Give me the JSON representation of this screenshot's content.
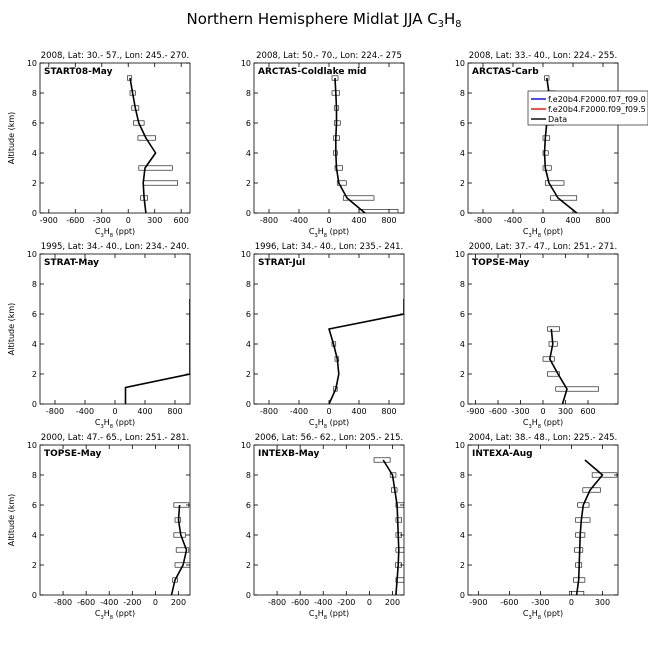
{
  "figure": {
    "title": "Northern Hemisphere Midlat JJA",
    "title_formula": {
      "base": "C",
      "sub1": "3",
      "mid": "H",
      "sub2": "8"
    }
  },
  "chart_data": [
    {
      "type": "line",
      "header": "2008, Lat:  30.- 57., Lon: 245.- 270.",
      "label": "START08-May",
      "xlim": [
        -1000,
        700
      ],
      "xticks": [
        -900,
        -600,
        -300,
        0,
        300,
        600
      ],
      "ylim": [
        0,
        10
      ],
      "yticks": [
        0,
        2,
        4,
        6,
        8,
        10
      ],
      "ylabel": "Altitude (km)",
      "xlabel": "",
      "legend": null,
      "model_line": [
        [
          200,
          0
        ],
        [
          180,
          1
        ],
        [
          170,
          2
        ],
        [
          190,
          3
        ],
        [
          310,
          4
        ],
        [
          200,
          5
        ],
        [
          120,
          6
        ],
        [
          80,
          7
        ],
        [
          50,
          8
        ],
        [
          20,
          9
        ]
      ],
      "obs_boxes": [
        {
          "y": 1,
          "x0": 140,
          "x1": 220
        },
        {
          "y": 2,
          "x0": 170,
          "x1": 560
        },
        {
          "y": 3,
          "x0": 120,
          "x1": 500
        },
        {
          "y": 5,
          "x0": 110,
          "x1": 310
        },
        {
          "y": 6,
          "x0": 60,
          "x1": 180
        },
        {
          "y": 7,
          "x0": 40,
          "x1": 120
        },
        {
          "y": 8,
          "x0": 20,
          "x1": 80
        },
        {
          "y": 9,
          "x0": -10,
          "x1": 40
        }
      ]
    },
    {
      "type": "line",
      "header": "2008, Lat:  50.- 70., Lon: 224.- 275",
      "label": "ARCTAS-Coldlake mid",
      "xlim": [
        -1000,
        1000
      ],
      "xticks": [
        -800,
        -400,
        0,
        400,
        800
      ],
      "ylim": [
        0,
        10
      ],
      "yticks": [
        0,
        2,
        4,
        6,
        8,
        10
      ],
      "ylabel": "",
      "xlabel": "",
      "legend": null,
      "model_line": [
        [
          480,
          0
        ],
        [
          240,
          1
        ],
        [
          130,
          2
        ],
        [
          100,
          3
        ],
        [
          90,
          4
        ],
        [
          90,
          5
        ],
        [
          100,
          6
        ],
        [
          100,
          7
        ],
        [
          90,
          8
        ],
        [
          80,
          9
        ]
      ],
      "obs_boxes": [
        {
          "y": 0.1,
          "x0": 400,
          "x1": 920
        },
        {
          "y": 1,
          "x0": 190,
          "x1": 600
        },
        {
          "y": 2,
          "x0": 110,
          "x1": 230
        },
        {
          "y": 3,
          "x0": 80,
          "x1": 180
        },
        {
          "y": 4,
          "x0": 60,
          "x1": 110
        },
        {
          "y": 5,
          "x0": 60,
          "x1": 140
        },
        {
          "y": 6,
          "x0": 70,
          "x1": 150
        },
        {
          "y": 7,
          "x0": 70,
          "x1": 130
        },
        {
          "y": 8,
          "x0": 40,
          "x1": 140
        },
        {
          "y": 9,
          "x0": 40,
          "x1": 120
        }
      ]
    },
    {
      "type": "line",
      "header": "2008, Lat:  33.- 40., Lon: 224.- 255.",
      "label": "ARCTAS-Carb",
      "xlim": [
        -1000,
        1000
      ],
      "xticks": [
        -800,
        -400,
        0,
        400,
        800
      ],
      "ylim": [
        0,
        10
      ],
      "yticks": [
        0,
        2,
        4,
        6,
        8,
        10
      ],
      "ylabel": "",
      "xlabel": "",
      "legend": {
        "entries": [
          {
            "name": "f.e20b4.F2000.f07_f09.0",
            "color": "#0000ff"
          },
          {
            "name": "f.e20b4.F2000.f09_f09.5",
            "color": "#ff0000"
          },
          {
            "name": "Data",
            "color": "#000000"
          }
        ]
      },
      "model_line": [
        [
          450,
          0
        ],
        [
          200,
          1
        ],
        [
          80,
          2
        ],
        [
          30,
          3
        ],
        [
          20,
          4
        ],
        [
          30,
          5
        ],
        [
          50,
          6
        ],
        [
          70,
          7
        ],
        [
          80,
          8
        ],
        [
          50,
          9
        ]
      ],
      "obs_boxes": [
        {
          "y": 1,
          "x0": 100,
          "x1": 450
        },
        {
          "y": 2,
          "x0": 30,
          "x1": 280
        },
        {
          "y": 3,
          "x0": 0,
          "x1": 110
        },
        {
          "y": 4,
          "x0": 0,
          "x1": 70
        },
        {
          "y": 5,
          "x0": 0,
          "x1": 90
        },
        {
          "y": 6,
          "x0": 30,
          "x1": 140
        },
        {
          "y": 7,
          "x0": 40,
          "x1": 150
        },
        {
          "y": 8,
          "x0": 60,
          "x1": 160
        },
        {
          "y": 9,
          "x0": 20,
          "x1": 80
        }
      ]
    },
    {
      "type": "line",
      "header": "1995, Lat: 34.- 40., Lon: 234.- 240.",
      "label": "STRAT-May",
      "xlim": [
        -1000,
        1000
      ],
      "xticks": [
        -800,
        -400,
        0,
        400,
        800
      ],
      "ylim": [
        0,
        10
      ],
      "yticks": [
        0,
        2,
        4,
        6,
        8,
        10
      ],
      "ylabel": "Altitude (km)",
      "xlabel": "",
      "legend": null,
      "model_line": [
        [
          140,
          0
        ],
        [
          140,
          1.1
        ],
        [
          1000,
          2
        ],
        [
          1000,
          7
        ]
      ],
      "obs_boxes": []
    },
    {
      "type": "line",
      "header": "1996, Lat: 34.- 40., Lon: 235.- 241.",
      "label": "STRAT-Jul",
      "xlim": [
        -1000,
        1000
      ],
      "xticks": [
        -800,
        -400,
        0,
        400,
        800
      ],
      "ylim": [
        0,
        10
      ],
      "yticks": [
        0,
        2,
        4,
        6,
        8,
        10
      ],
      "ylabel": "",
      "xlabel": "",
      "legend": null,
      "model_line": [
        [
          0,
          0
        ],
        [
          90,
          1
        ],
        [
          130,
          2
        ],
        [
          110,
          3
        ],
        [
          60,
          4
        ],
        [
          0,
          5
        ],
        [
          1000,
          6
        ],
        [
          1000,
          7
        ]
      ],
      "obs_boxes": [
        {
          "y": 1,
          "x0": 60,
          "x1": 110
        },
        {
          "y": 3,
          "x0": 80,
          "x1": 130
        },
        {
          "y": 4,
          "x0": 40,
          "x1": 90
        }
      ]
    },
    {
      "type": "line",
      "header": "2000, Lat: 37.- 47., Lon: 251.- 271.",
      "label": "TOPSE-May",
      "xlim": [
        -1000,
        1000
      ],
      "xticks": [
        -900,
        -600,
        -300,
        0,
        300,
        600
      ],
      "ylim": [
        0,
        10
      ],
      "yticks": [
        0,
        2,
        4,
        6,
        8,
        10
      ],
      "ylabel": "",
      "xlabel": "",
      "legend": null,
      "model_line": [
        [
          260,
          0
        ],
        [
          320,
          1
        ],
        [
          200,
          2
        ],
        [
          90,
          3
        ],
        [
          130,
          4
        ],
        [
          110,
          5
        ]
      ],
      "obs_boxes": [
        {
          "y": 1,
          "x0": 170,
          "x1": 740
        },
        {
          "y": 2,
          "x0": 60,
          "x1": 220
        },
        {
          "y": 3,
          "x0": 0,
          "x1": 150
        },
        {
          "y": 4,
          "x0": 80,
          "x1": 190
        },
        {
          "y": 5,
          "x0": 60,
          "x1": 220
        }
      ]
    },
    {
      "type": "line",
      "header": "2000, Lat: 47.- 65., Lon: 251.- 281.",
      "label": "TOPSE-May",
      "xlim": [
        -1000,
        300
      ],
      "xticks": [
        -800,
        -600,
        -400,
        -200,
        0,
        200
      ],
      "ylim": [
        0,
        10
      ],
      "yticks": [
        0,
        2,
        4,
        6,
        8,
        10
      ],
      "ylabel": "Altitude (km)",
      "xlabel": "",
      "legend": null,
      "model_line": [
        [
          140,
          0
        ],
        [
          170,
          1
        ],
        [
          240,
          2
        ],
        [
          270,
          3
        ],
        [
          220,
          4
        ],
        [
          200,
          5
        ],
        [
          210,
          6
        ]
      ],
      "obs_boxes": [
        {
          "y": 1,
          "x0": 150,
          "x1": 190
        },
        {
          "y": 2,
          "x0": 170,
          "x1": 300
        },
        {
          "y": 3,
          "x0": 180,
          "x1": 290
        },
        {
          "y": 4,
          "x0": 160,
          "x1": 260
        },
        {
          "y": 5,
          "x0": 170,
          "x1": 220
        },
        {
          "y": 6,
          "x0": 160,
          "x1": 290
        }
      ]
    },
    {
      "type": "line",
      "header": "2006, Lat: 56.- 62., Lon: 205.- 215.",
      "label": "INTEXB-May",
      "xlim": [
        -1000,
        300
      ],
      "xticks": [
        -800,
        -600,
        -400,
        -200,
        0,
        200
      ],
      "ylim": [
        0,
        10
      ],
      "yticks": [
        0,
        2,
        4,
        6,
        8,
        10
      ],
      "ylabel": "",
      "xlabel": "",
      "legend": null,
      "model_line": [
        [
          230,
          0
        ],
        [
          240,
          1
        ],
        [
          250,
          2
        ],
        [
          255,
          3
        ],
        [
          250,
          4
        ],
        [
          245,
          5
        ],
        [
          240,
          6
        ],
        [
          220,
          7
        ],
        [
          200,
          8
        ],
        [
          120,
          9
        ]
      ],
      "obs_boxes": [
        {
          "y": 1,
          "x0": 230,
          "x1": 300
        },
        {
          "y": 2,
          "x0": 225,
          "x1": 280
        },
        {
          "y": 3,
          "x0": 230,
          "x1": 300
        },
        {
          "y": 4,
          "x0": 230,
          "x1": 280
        },
        {
          "y": 5,
          "x0": 230,
          "x1": 280
        },
        {
          "y": 6,
          "x0": 230,
          "x1": 300
        },
        {
          "y": 7,
          "x0": 190,
          "x1": 240
        },
        {
          "y": 8,
          "x0": 180,
          "x1": 230
        },
        {
          "y": 9,
          "x0": 40,
          "x1": 180
        }
      ]
    },
    {
      "type": "line",
      "header": "2004, Lat: 38.- 48., Lon: 225.- 245.",
      "label": "INTEXA-Aug",
      "xlim": [
        -1000,
        450
      ],
      "xticks": [
        -900,
        -600,
        -300,
        0,
        300
      ],
      "ylim": [
        0,
        10
      ],
      "yticks": [
        0,
        2,
        4,
        6,
        8,
        10
      ],
      "ylabel": "",
      "xlabel": "",
      "legend": null,
      "model_line": [
        [
          50,
          0
        ],
        [
          70,
          1
        ],
        [
          75,
          2
        ],
        [
          80,
          3
        ],
        [
          85,
          4
        ],
        [
          95,
          5
        ],
        [
          115,
          6
        ],
        [
          180,
          7
        ],
        [
          300,
          8
        ],
        [
          130,
          9
        ]
      ],
      "obs_boxes": [
        {
          "y": 0.1,
          "x0": -20,
          "x1": 120
        },
        {
          "y": 1,
          "x0": 20,
          "x1": 130
        },
        {
          "y": 2,
          "x0": 40,
          "x1": 100
        },
        {
          "y": 3,
          "x0": 30,
          "x1": 110
        },
        {
          "y": 4,
          "x0": 40,
          "x1": 130
        },
        {
          "y": 5,
          "x0": 40,
          "x1": 180
        },
        {
          "y": 6,
          "x0": 60,
          "x1": 170
        },
        {
          "y": 7,
          "x0": 110,
          "x1": 280
        },
        {
          "y": 8,
          "x0": 200,
          "x1": 440
        }
      ]
    }
  ],
  "xlabel_formula": {
    "base": "C",
    "sub1": "3",
    "mid": "H",
    "sub2": "8",
    "unit": " (ppt)"
  }
}
